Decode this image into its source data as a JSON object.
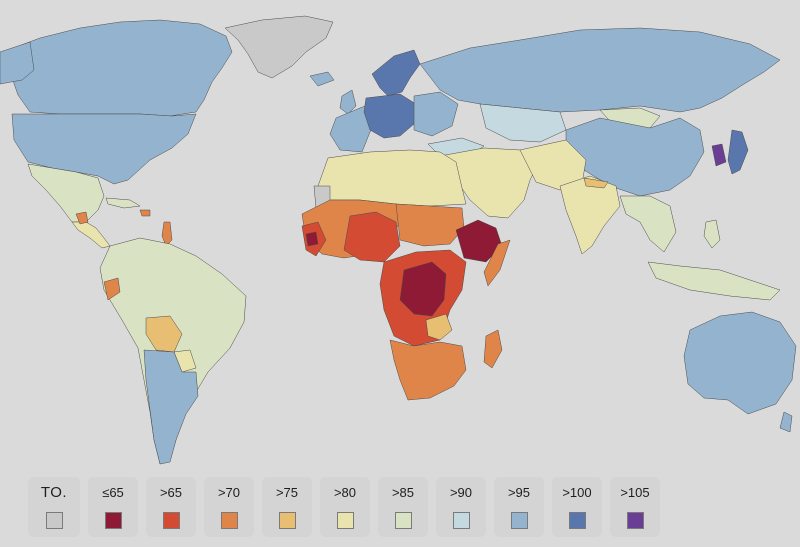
{
  "map": {
    "scale_colors": {
      "na": "#c9c9c9",
      "le65": "#8e1a35",
      "gt65": "#d24b32",
      "gt70": "#e0854a",
      "gt75": "#e8be72",
      "gt80": "#e9e3ad",
      "gt85": "#d9e2c2",
      "gt90": "#c4dae0",
      "gt95": "#93b3cf",
      "gt100": "#5a77ad",
      "gt105": "#6b3e95"
    },
    "ocean_color": "#dadada"
  },
  "legend": {
    "items": [
      {
        "label": "TO.",
        "color": "#c9c9c9"
      },
      {
        "label": "≤65",
        "color": "#8e1a35"
      },
      {
        "label": ">65",
        "color": "#d24b32"
      },
      {
        "label": ">70",
        "color": "#e0854a"
      },
      {
        "label": ">75",
        "color": "#e8be72"
      },
      {
        "label": ">80",
        "color": "#e9e3ad"
      },
      {
        "label": ">85",
        "color": "#d9e2c2"
      },
      {
        "label": ">90",
        "color": "#c4dae0"
      },
      {
        "label": ">95",
        "color": "#93b3cf"
      },
      {
        "label": ">100",
        "color": "#5a77ad"
      },
      {
        "label": ">105",
        "color": "#6b3e95"
      }
    ]
  }
}
